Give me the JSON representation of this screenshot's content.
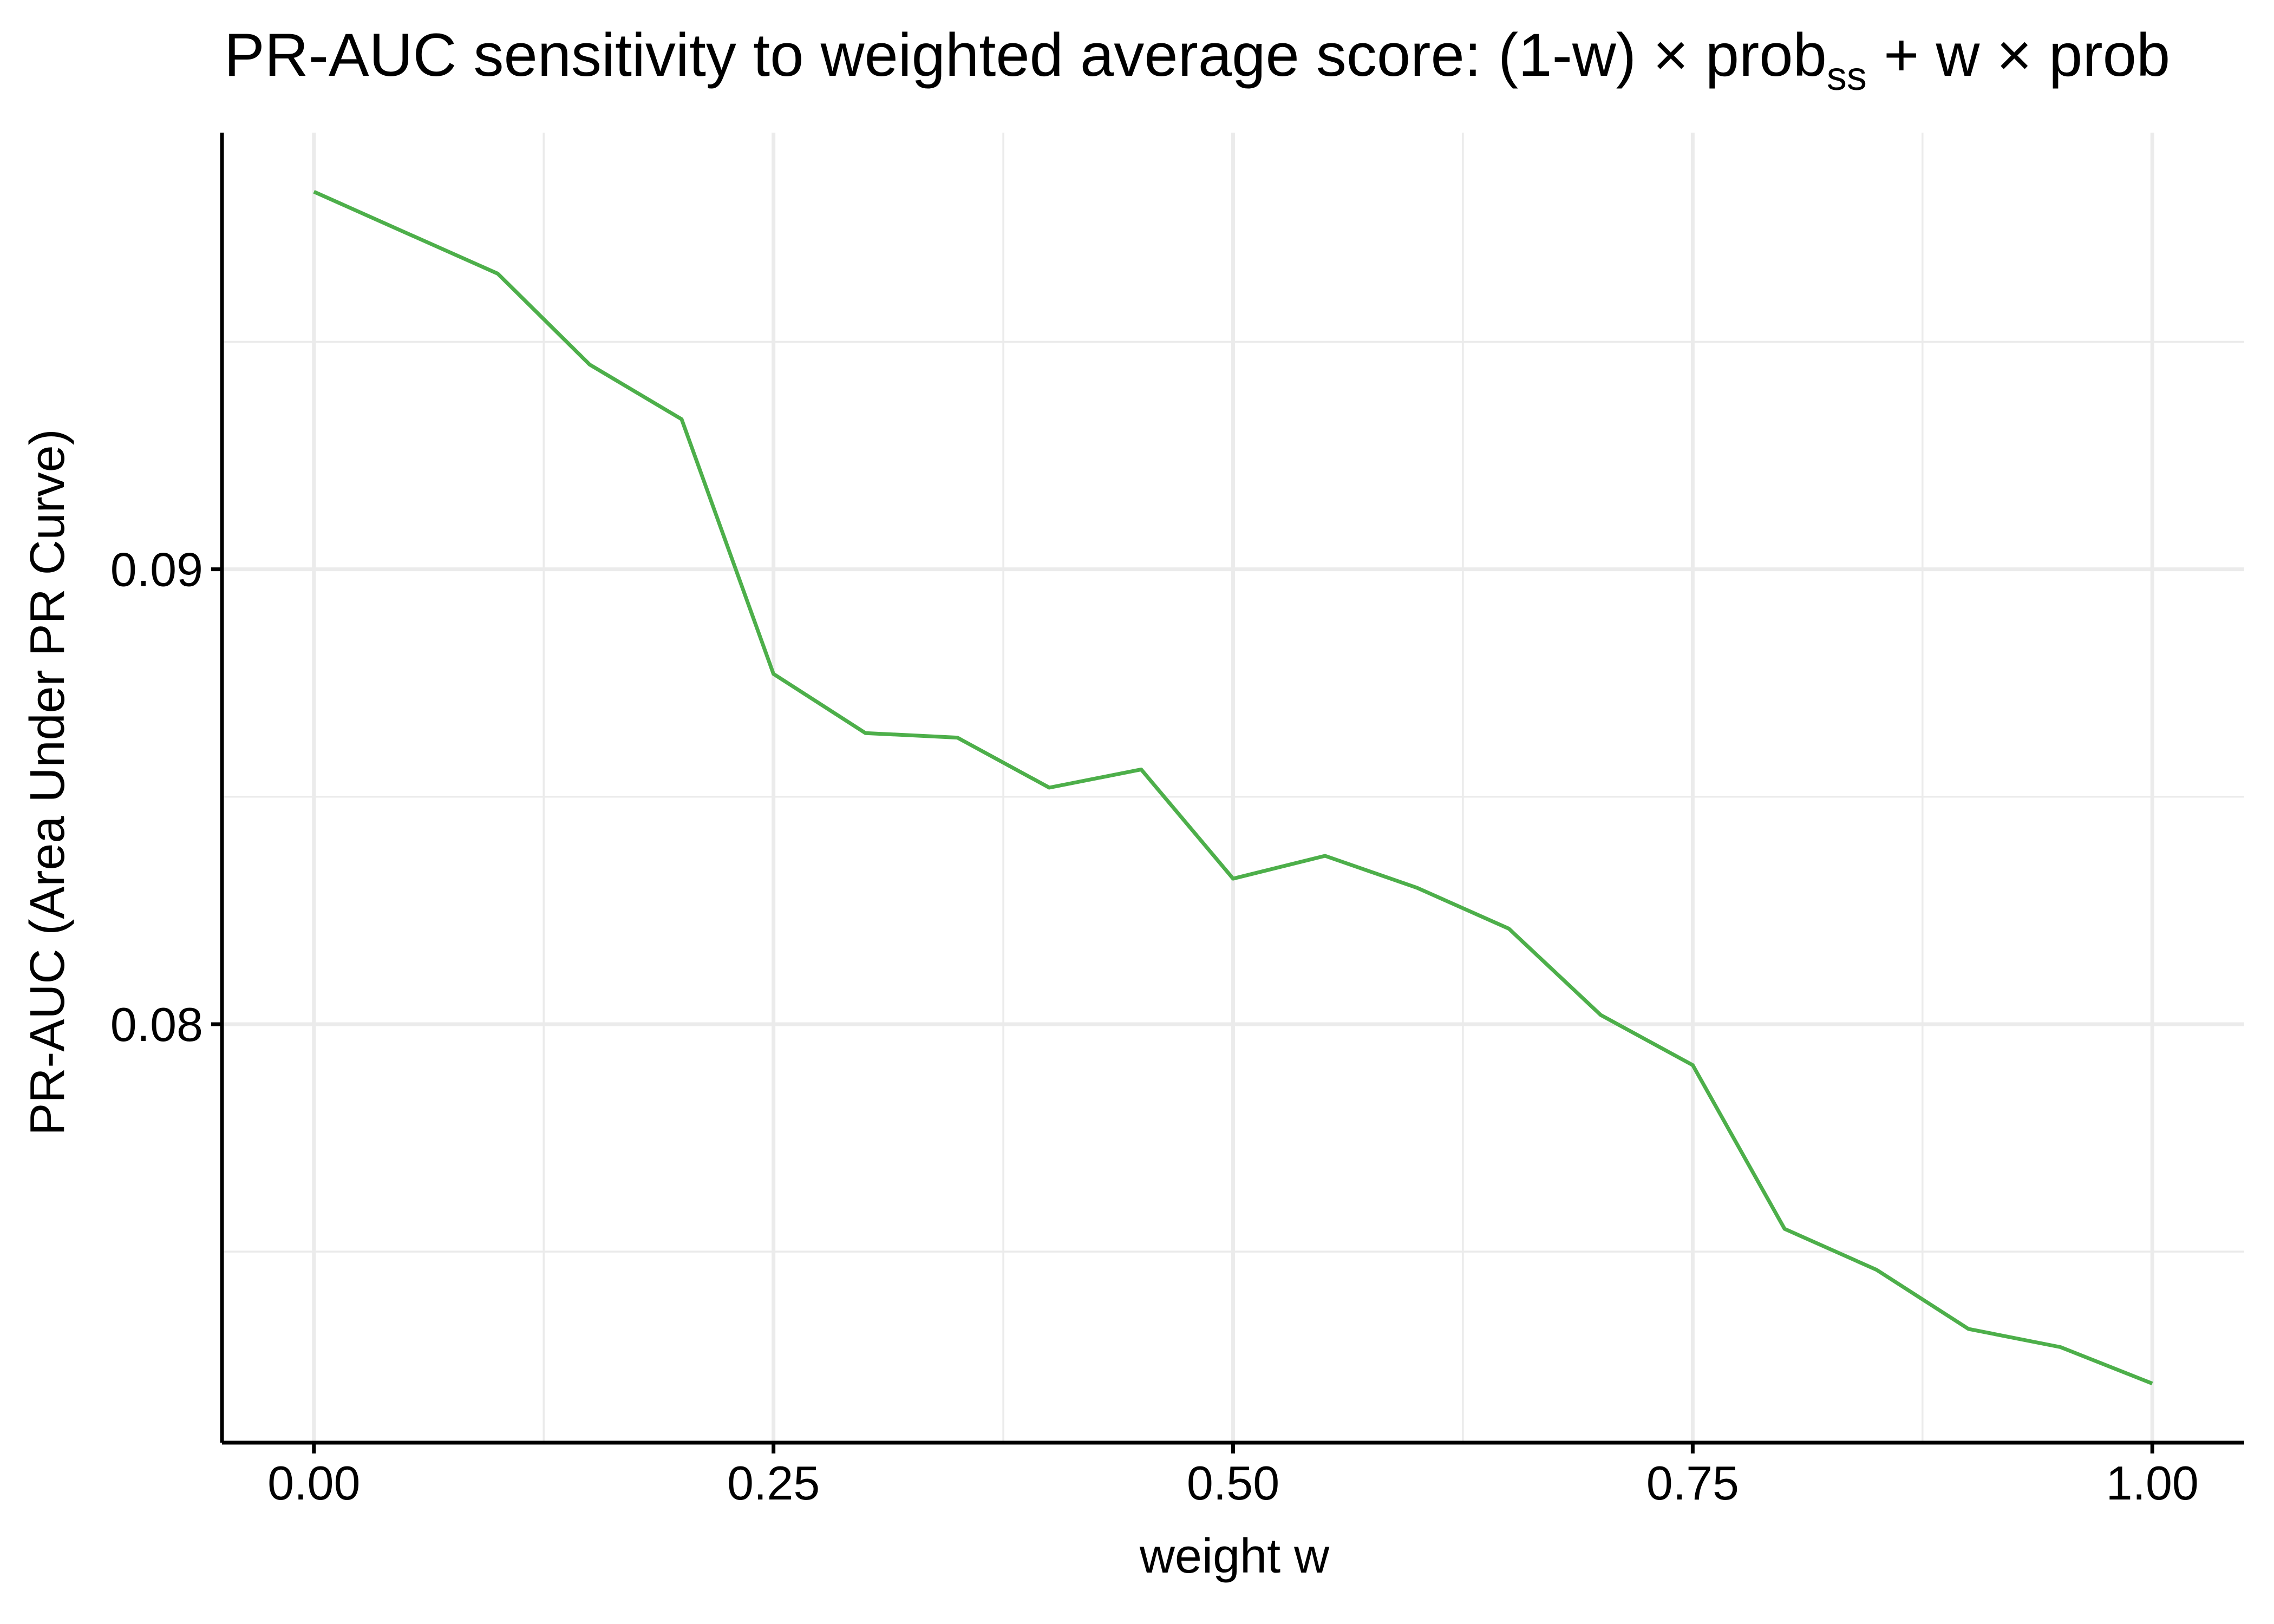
{
  "chart_data": {
    "type": "line",
    "title": {
      "main": "PR-AUC sensitivity to weighted average score: (1-w) × prob",
      "sub1": "ss",
      "join": " + w × prob",
      "sub2": ""
    },
    "xlabel": "weight w",
    "ylabel": "PR-AUC (Area Under PR Curve)",
    "xlim": [
      -0.05,
      1.05
    ],
    "ylim": [
      0.0708,
      0.0996
    ],
    "x_ticks": [
      0.0,
      0.25,
      0.5,
      0.75,
      1.0
    ],
    "x_tick_labels": [
      "0.00",
      "0.25",
      "0.50",
      "0.75",
      "1.00"
    ],
    "x_minor_ticks": [
      0.125,
      0.375,
      0.625,
      0.875
    ],
    "y_ticks": [
      0.08,
      0.09
    ],
    "y_tick_labels": [
      "0.08",
      "0.09"
    ],
    "y_minor_ticks": [
      0.075,
      0.085,
      0.095
    ],
    "grid": true,
    "legend": "none",
    "series": [
      {
        "color": "#4daf4a",
        "x": [
          0.0,
          0.05,
          0.1,
          0.15,
          0.2,
          0.25,
          0.3,
          0.35,
          0.4,
          0.45,
          0.5,
          0.55,
          0.6,
          0.65,
          0.7,
          0.75,
          0.8,
          0.85,
          0.9,
          0.95,
          1.0
        ],
        "y": [
          0.0983,
          0.0974,
          0.0965,
          0.0945,
          0.0933,
          0.0877,
          0.0864,
          0.0863,
          0.0852,
          0.0856,
          0.0832,
          0.0837,
          0.083,
          0.0821,
          0.0802,
          0.0791,
          0.0755,
          0.0746,
          0.0733,
          0.0729,
          0.0721
        ]
      }
    ]
  }
}
